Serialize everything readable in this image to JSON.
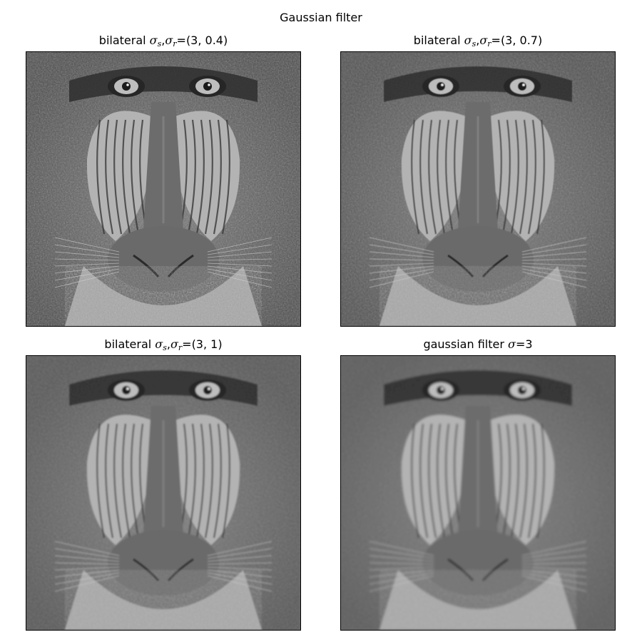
{
  "figure": {
    "suptitle": "Gaussian filter"
  },
  "panels": [
    {
      "kind": "bilateral",
      "title_prefix": "bilateral",
      "sym1": "σ",
      "sub1": "s",
      "comma": ",",
      "sym2": "σ",
      "sub2": "r",
      "title_value": "=(3, 0.4)",
      "image_subject": "mandrill face, grayscale, sharpest"
    },
    {
      "kind": "bilateral",
      "title_prefix": "bilateral",
      "sym1": "σ",
      "sub1": "s",
      "comma": ",",
      "sym2": "σ",
      "sub2": "r",
      "title_value": "=(3, 0.7)",
      "image_subject": "mandrill face, grayscale, slightly smoothed"
    },
    {
      "kind": "bilateral",
      "title_prefix": "bilateral",
      "sym1": "σ",
      "sub1": "s",
      "comma": ",",
      "sym2": "σ",
      "sub2": "r",
      "title_value": "=(3, 1)",
      "image_subject": "mandrill face, grayscale, smoothed"
    },
    {
      "kind": "gaussian",
      "title_prefix": "gaussian filter",
      "sym1": "σ",
      "title_value": "=3",
      "image_subject": "mandrill face, grayscale, blurred"
    }
  ]
}
